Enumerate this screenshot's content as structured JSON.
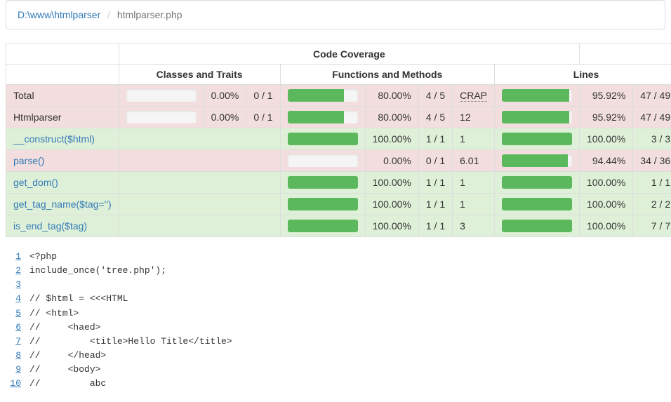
{
  "breadcrumb": {
    "path_link": "D:\\www\\htmlparser",
    "current": "htmlparser.php"
  },
  "colors": {
    "danger_bg": "#f2dede",
    "success_bg": "#dff0d8",
    "bar_fill": "#5cb85c",
    "bar_bg": "#f5f5f5",
    "link": "#337ab7",
    "border": "#ddd"
  },
  "table": {
    "header_main": "Code Coverage",
    "headers": [
      "Classes and Traits",
      "Functions and Methods",
      "Lines"
    ],
    "crap_label": "CRAP",
    "rows": [
      {
        "name": "Total",
        "is_link": false,
        "row_class": "row-danger",
        "classes": {
          "bar": 0,
          "pct": "0.00%",
          "frac": "0 / 1"
        },
        "functions": {
          "bar": 80,
          "pct": "80.00%",
          "frac": "4 / 5",
          "crap": "CRAP",
          "crap_is_abbr": true
        },
        "lines": {
          "bar": 95.92,
          "pct": "95.92%",
          "frac": "47 / 49"
        }
      },
      {
        "name": "Htmlparser",
        "is_link": false,
        "row_class": "row-danger",
        "classes": {
          "bar": 0,
          "pct": "0.00%",
          "frac": "0 / 1"
        },
        "functions": {
          "bar": 80,
          "pct": "80.00%",
          "frac": "4 / 5",
          "crap": "12"
        },
        "lines": {
          "bar": 95.92,
          "pct": "95.92%",
          "frac": "47 / 49"
        }
      },
      {
        "name": " __construct($html)",
        "is_link": true,
        "row_class": "row-success",
        "classes": null,
        "functions": {
          "bar": 100,
          "pct": "100.00%",
          "frac": "1 / 1",
          "crap": "1"
        },
        "lines": {
          "bar": 100,
          "pct": "100.00%",
          "frac": "3 / 3"
        }
      },
      {
        "name": " parse()",
        "is_link": true,
        "row_class": "row-danger",
        "classes": null,
        "functions": {
          "bar": 0,
          "pct": "0.00%",
          "frac": "0 / 1",
          "crap": "6.01"
        },
        "lines": {
          "bar": 94.44,
          "pct": "94.44%",
          "frac": "34 / 36"
        }
      },
      {
        "name": " get_dom()",
        "is_link": true,
        "row_class": "row-success",
        "classes": null,
        "functions": {
          "bar": 100,
          "pct": "100.00%",
          "frac": "1 / 1",
          "crap": "1"
        },
        "lines": {
          "bar": 100,
          "pct": "100.00%",
          "frac": "1 / 1"
        }
      },
      {
        "name": " get_tag_name($tag='')",
        "is_link": true,
        "row_class": "row-success",
        "classes": null,
        "functions": {
          "bar": 100,
          "pct": "100.00%",
          "frac": "1 / 1",
          "crap": "1"
        },
        "lines": {
          "bar": 100,
          "pct": "100.00%",
          "frac": "2 / 2"
        }
      },
      {
        "name": " is_end_tag($tag)",
        "is_link": true,
        "row_class": "row-success",
        "classes": null,
        "functions": {
          "bar": 100,
          "pct": "100.00%",
          "frac": "1 / 1",
          "crap": "3"
        },
        "lines": {
          "bar": 100,
          "pct": "100.00%",
          "frac": "7 / 7"
        }
      }
    ]
  },
  "code": {
    "start_line": 1,
    "lines": [
      "<?php",
      "include_once('tree.php');",
      "",
      "// $html = <<<HTML",
      "// <html>",
      "//     <haed>",
      "//         <title>Hello Title</title>",
      "//     </head>",
      "//     <body>",
      "//         abc"
    ]
  }
}
